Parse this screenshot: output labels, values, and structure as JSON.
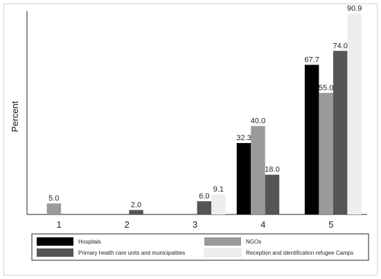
{
  "chart_data": {
    "type": "bar",
    "ylabel": "Percent",
    "categories": [
      "1",
      "2",
      "3",
      "4",
      "5"
    ],
    "ylim": [
      0,
      92
    ],
    "legend_position": "bottom",
    "series": [
      {
        "name": "Hospitals",
        "color": "#000000",
        "values": [
          null,
          null,
          null,
          32.3,
          67.7
        ],
        "labels": [
          "",
          "",
          "",
          "32.3",
          "67.7"
        ]
      },
      {
        "name": "NGOs",
        "color": "#9a9a9a",
        "values": [
          5.0,
          null,
          null,
          40.0,
          55.0
        ],
        "labels": [
          "5.0",
          "",
          "",
          "40.0",
          "55.0"
        ]
      },
      {
        "name": "Primary health care units and municipalities",
        "color": "#555555",
        "values": [
          null,
          2.0,
          6.0,
          18.0,
          74.0
        ],
        "labels": [
          "",
          "2.0",
          "6.0",
          "18.0",
          "74.0"
        ]
      },
      {
        "name": "Reception and identification refugee Camps",
        "color": "#eeeeee",
        "values": [
          null,
          null,
          9.1,
          null,
          90.9
        ],
        "labels": [
          "",
          "",
          "9.1",
          "",
          "90.9"
        ]
      }
    ]
  }
}
